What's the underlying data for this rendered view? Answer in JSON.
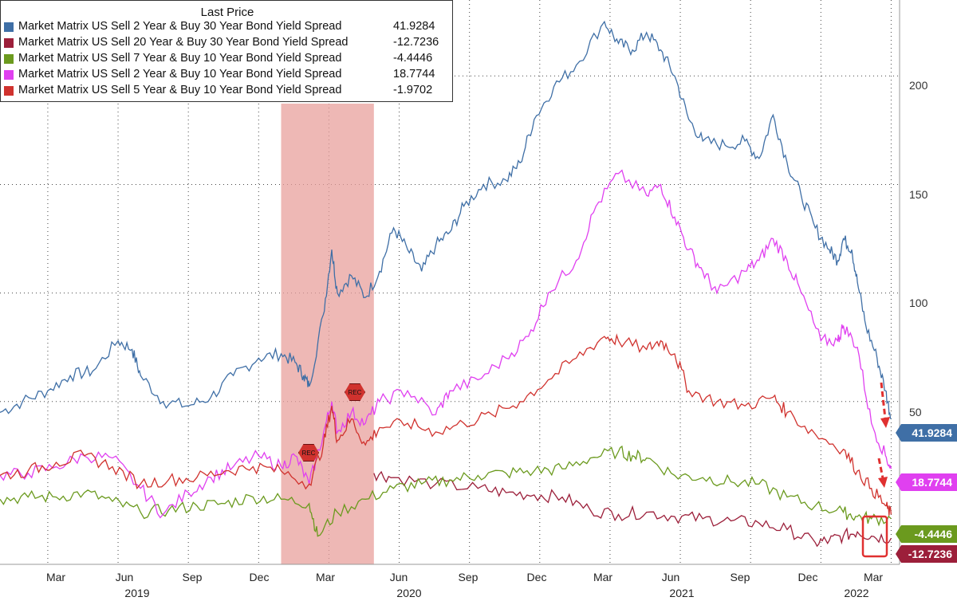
{
  "legend": {
    "title": "Last Price",
    "items": [
      {
        "label": "Market Matrix US Sell 2 Year & Buy 30 Year Bond Yield Spread",
        "value": "41.9284",
        "color": "#3f6fa6"
      },
      {
        "label": "Market Matrix US Sell 20 Year & Buy 30 Year Bond Yield Spread",
        "value": "-12.7236",
        "color": "#9c1f3a"
      },
      {
        "label": "Market Matrix US Sell 7 Year & Buy 10 Year Bond Yield Spread",
        "value": "-4.4446",
        "color": "#6b9a1e"
      },
      {
        "label": "Market Matrix US Sell 2 Year & Buy 10 Year Bond Yield Spread",
        "value": "18.7744",
        "color": "#e040f0"
      },
      {
        "label": "Market Matrix US Sell 5 Year & Buy 10 Year Bond Yield Spread",
        "value": "-1.9702",
        "color": "#d0322e"
      }
    ]
  },
  "recession_label": "REC",
  "chart_data": {
    "type": "line",
    "title": "Last Price",
    "ylim": [
      -25,
      235
    ],
    "yticks": [
      "50",
      "100",
      "150",
      "200"
    ],
    "x_ticks": [
      "Mar",
      "Jun",
      "Sep",
      "Dec",
      "Mar",
      "Jun",
      "Sep",
      "Dec",
      "Mar",
      "Jun",
      "Sep",
      "Dec",
      "Mar"
    ],
    "x_years": [
      "2019",
      "2020",
      "2021",
      "2022"
    ],
    "x_range": [
      2019.0,
      2022.2
    ],
    "recession_band": [
      2020.0,
      2020.33
    ],
    "series": [
      {
        "name": "2s30s",
        "color": "#3f6fa6",
        "last": "41.9284",
        "points": [
          [
            2019.0,
            45
          ],
          [
            2019.08,
            50
          ],
          [
            2019.17,
            55
          ],
          [
            2019.25,
            62
          ],
          [
            2019.33,
            64
          ],
          [
            2019.42,
            78
          ],
          [
            2019.47,
            74
          ],
          [
            2019.5,
            62
          ],
          [
            2019.58,
            50
          ],
          [
            2019.67,
            48
          ],
          [
            2019.75,
            52
          ],
          [
            2019.83,
            62
          ],
          [
            2019.92,
            70
          ],
          [
            2020.0,
            72
          ],
          [
            2020.05,
            68
          ],
          [
            2020.08,
            62
          ],
          [
            2020.1,
            57
          ],
          [
            2020.15,
            90
          ],
          [
            2020.18,
            120
          ],
          [
            2020.2,
            100
          ],
          [
            2020.25,
            108
          ],
          [
            2020.3,
            98
          ],
          [
            2020.35,
            110
          ],
          [
            2020.4,
            130
          ],
          [
            2020.45,
            120
          ],
          [
            2020.5,
            110
          ],
          [
            2020.55,
            122
          ],
          [
            2020.6,
            128
          ],
          [
            2020.65,
            140
          ],
          [
            2020.72,
            150
          ],
          [
            2020.8,
            152
          ],
          [
            2020.85,
            160
          ],
          [
            2020.9,
            180
          ],
          [
            2020.97,
            195
          ],
          [
            2021.05,
            205
          ],
          [
            2021.15,
            225
          ],
          [
            2021.2,
            215
          ],
          [
            2021.25,
            212
          ],
          [
            2021.3,
            220
          ],
          [
            2021.35,
            212
          ],
          [
            2021.4,
            200
          ],
          [
            2021.45,
            180
          ],
          [
            2021.5,
            170
          ],
          [
            2021.58,
            168
          ],
          [
            2021.65,
            170
          ],
          [
            2021.7,
            162
          ],
          [
            2021.75,
            182
          ],
          [
            2021.8,
            160
          ],
          [
            2021.85,
            145
          ],
          [
            2021.9,
            130
          ],
          [
            2021.95,
            120
          ],
          [
            2021.98,
            115
          ],
          [
            2022.0,
            125
          ],
          [
            2022.03,
            120
          ],
          [
            2022.05,
            105
          ],
          [
            2022.08,
            85
          ],
          [
            2022.12,
            70
          ],
          [
            2022.15,
            55
          ],
          [
            2022.17,
            42
          ]
        ]
      },
      {
        "name": "20s30s",
        "color": "#9c1f3a",
        "last": "-12.7236",
        "points": [
          [
            2020.33,
            17
          ],
          [
            2020.4,
            15
          ],
          [
            2020.55,
            12
          ],
          [
            2020.7,
            10
          ],
          [
            2020.8,
            8
          ],
          [
            2020.9,
            7
          ],
          [
            2021.0,
            6
          ],
          [
            2021.1,
            0
          ],
          [
            2021.2,
            -2
          ],
          [
            2021.3,
            -1
          ],
          [
            2021.4,
            -3
          ],
          [
            2021.5,
            -4
          ],
          [
            2021.6,
            -5
          ],
          [
            2021.7,
            -6
          ],
          [
            2021.8,
            -9
          ],
          [
            2021.9,
            -15
          ],
          [
            2021.95,
            -14
          ],
          [
            2022.0,
            -12
          ],
          [
            2022.05,
            -10
          ],
          [
            2022.1,
            -12
          ],
          [
            2022.17,
            -13
          ]
        ]
      },
      {
        "name": "7s10s",
        "color": "#6b9a1e",
        "last": "-4.4446",
        "points": [
          [
            2019.0,
            5
          ],
          [
            2019.1,
            6
          ],
          [
            2019.2,
            6
          ],
          [
            2019.3,
            8
          ],
          [
            2019.4,
            4
          ],
          [
            2019.5,
            -1
          ],
          [
            2019.6,
            0
          ],
          [
            2019.7,
            2
          ],
          [
            2019.8,
            3
          ],
          [
            2019.9,
            6
          ],
          [
            2020.0,
            5
          ],
          [
            2020.1,
            3
          ],
          [
            2020.13,
            -12
          ],
          [
            2020.2,
            -1
          ],
          [
            2020.3,
            5
          ],
          [
            2020.4,
            10
          ],
          [
            2020.5,
            12
          ],
          [
            2020.6,
            14
          ],
          [
            2020.7,
            16
          ],
          [
            2020.8,
            17
          ],
          [
            2020.9,
            18
          ],
          [
            2021.0,
            19
          ],
          [
            2021.1,
            24
          ],
          [
            2021.2,
            27
          ],
          [
            2021.25,
            25
          ],
          [
            2021.3,
            24
          ],
          [
            2021.4,
            16
          ],
          [
            2021.5,
            15
          ],
          [
            2021.6,
            13
          ],
          [
            2021.7,
            12
          ],
          [
            2021.8,
            6
          ],
          [
            2021.9,
            2
          ],
          [
            2022.0,
            -1
          ],
          [
            2022.05,
            -3
          ],
          [
            2022.1,
            -4
          ],
          [
            2022.17,
            -4
          ]
        ]
      },
      {
        "name": "2s10s",
        "color": "#e040f0",
        "last": "18.7744",
        "points": [
          [
            2019.0,
            16
          ],
          [
            2019.1,
            17
          ],
          [
            2019.2,
            20
          ],
          [
            2019.3,
            25
          ],
          [
            2019.4,
            24
          ],
          [
            2019.5,
            10
          ],
          [
            2019.58,
            -2
          ],
          [
            2019.67,
            8
          ],
          [
            2019.75,
            15
          ],
          [
            2019.83,
            20
          ],
          [
            2019.92,
            25
          ],
          [
            2020.0,
            20
          ],
          [
            2020.05,
            25
          ],
          [
            2020.1,
            12
          ],
          [
            2020.15,
            35
          ],
          [
            2020.18,
            50
          ],
          [
            2020.2,
            36
          ],
          [
            2020.25,
            45
          ],
          [
            2020.3,
            40
          ],
          [
            2020.35,
            50
          ],
          [
            2020.45,
            55
          ],
          [
            2020.55,
            44
          ],
          [
            2020.6,
            55
          ],
          [
            2020.7,
            60
          ],
          [
            2020.8,
            70
          ],
          [
            2020.88,
            80
          ],
          [
            2020.95,
            100
          ],
          [
            2021.05,
            115
          ],
          [
            2021.12,
            140
          ],
          [
            2021.2,
            155
          ],
          [
            2021.3,
            145
          ],
          [
            2021.35,
            150
          ],
          [
            2021.4,
            135
          ],
          [
            2021.45,
            120
          ],
          [
            2021.5,
            110
          ],
          [
            2021.55,
            100
          ],
          [
            2021.65,
            110
          ],
          [
            2021.7,
            115
          ],
          [
            2021.75,
            125
          ],
          [
            2021.8,
            115
          ],
          [
            2021.85,
            100
          ],
          [
            2021.92,
            78
          ],
          [
            2021.98,
            78
          ],
          [
            2022.0,
            85
          ],
          [
            2022.05,
            75
          ],
          [
            2022.1,
            40
          ],
          [
            2022.15,
            25
          ],
          [
            2022.17,
            19
          ]
        ]
      },
      {
        "name": "5s10s",
        "color": "#d0322e",
        "last": "-1.9702",
        "points": [
          [
            2019.0,
            16
          ],
          [
            2019.1,
            18
          ],
          [
            2019.2,
            22
          ],
          [
            2019.3,
            25
          ],
          [
            2019.4,
            20
          ],
          [
            2019.5,
            12
          ],
          [
            2019.6,
            14
          ],
          [
            2019.7,
            15
          ],
          [
            2019.8,
            18
          ],
          [
            2019.9,
            20
          ],
          [
            2020.0,
            18
          ],
          [
            2020.1,
            12
          ],
          [
            2020.15,
            30
          ],
          [
            2020.18,
            48
          ],
          [
            2020.2,
            32
          ],
          [
            2020.25,
            42
          ],
          [
            2020.3,
            30
          ],
          [
            2020.35,
            38
          ],
          [
            2020.45,
            40
          ],
          [
            2020.55,
            36
          ],
          [
            2020.65,
            40
          ],
          [
            2020.75,
            44
          ],
          [
            2020.85,
            50
          ],
          [
            2020.95,
            60
          ],
          [
            2021.05,
            70
          ],
          [
            2021.15,
            80
          ],
          [
            2021.2,
            78
          ],
          [
            2021.3,
            74
          ],
          [
            2021.35,
            78
          ],
          [
            2021.4,
            72
          ],
          [
            2021.45,
            55
          ],
          [
            2021.55,
            50
          ],
          [
            2021.65,
            48
          ],
          [
            2021.75,
            52
          ],
          [
            2021.8,
            45
          ],
          [
            2021.9,
            35
          ],
          [
            2022.0,
            28
          ],
          [
            2022.05,
            18
          ],
          [
            2022.1,
            10
          ],
          [
            2022.15,
            2
          ],
          [
            2022.17,
            -2
          ]
        ]
      }
    ]
  }
}
